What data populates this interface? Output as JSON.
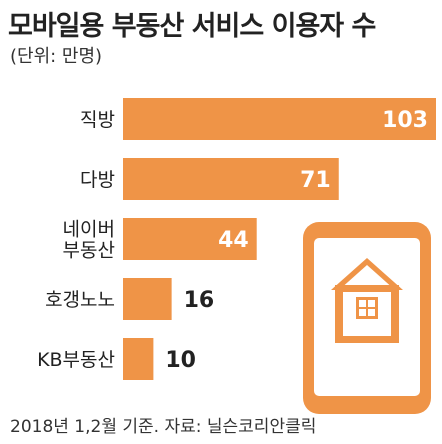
{
  "header": {
    "title": "모바일용 부동산 서비스 이용자 수",
    "unit": "(단위: 만명)"
  },
  "footer": {
    "source": "2018년 1,2월 기준. 자료: 닐슨코리안클릭"
  },
  "colors": {
    "bar": "#ef9447",
    "phone": "#ef9447",
    "text": "#222222",
    "inside_label": "#ffffff"
  },
  "icons": [
    "smartphone-icon",
    "house-icon"
  ],
  "chart_data": {
    "type": "bar",
    "orientation": "horizontal",
    "title": "모바일용 부동산 서비스 이용자 수",
    "ylabel": "(단위: 만명)",
    "categories": [
      "직방",
      "다방",
      "네이버 부동산",
      "호갱노노",
      "KB부동산"
    ],
    "category_lines": [
      [
        "직방"
      ],
      [
        "다방"
      ],
      [
        "네이버",
        "부동산"
      ],
      [
        "호갱노노"
      ],
      [
        "KB부동산"
      ]
    ],
    "values": [
      103,
      71,
      44,
      16,
      10
    ],
    "xlim": [
      0,
      103
    ],
    "grid": false,
    "legend": "none"
  }
}
